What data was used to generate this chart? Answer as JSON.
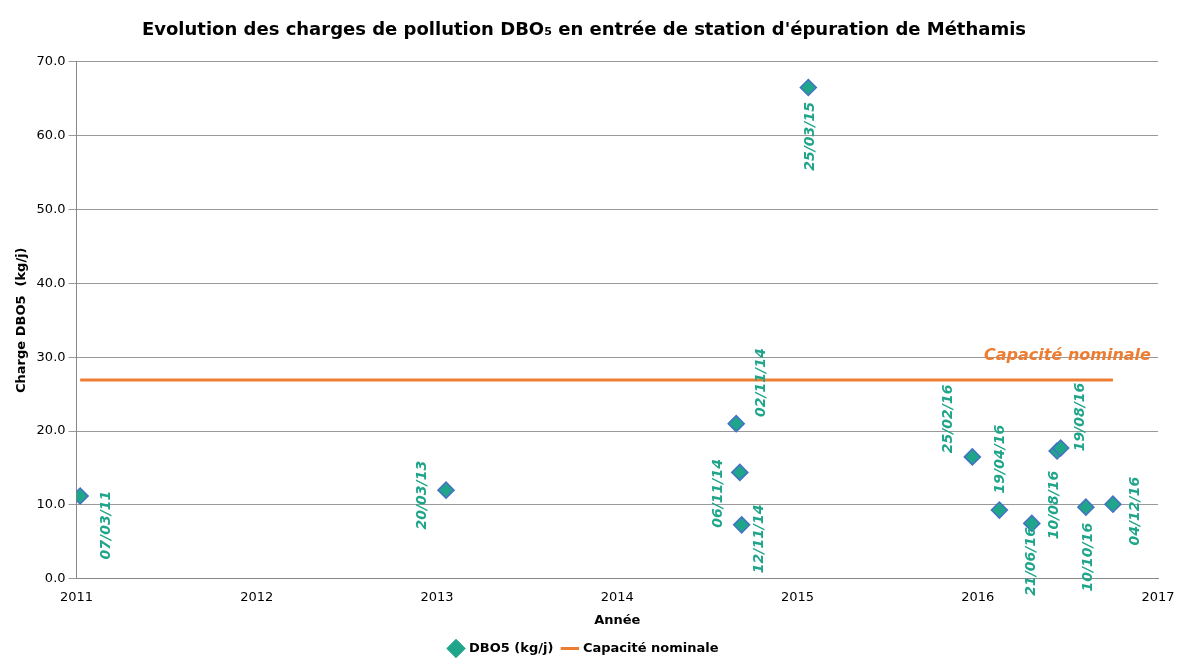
{
  "chart_data": {
    "type": "scatter",
    "title": "Evolution des charges de pollution DBO₅ en entrée de station d'épuration de Méthamis",
    "xlabel": "Année",
    "ylabel": "Charge DBO5  (kg/j)",
    "series": [
      {
        "name": "DBO5 (kg/j)",
        "color": "#1fa58a",
        "marker": "diamond",
        "x": [
          2011.02,
          2013.05,
          2014.66,
          2014.68,
          2014.69,
          2015.06,
          2015.97,
          2016.12,
          2016.3,
          2016.44,
          2016.46,
          2016.6,
          2016.75
        ],
        "values": [
          11.2,
          12.0,
          21.0,
          14.4,
          7.3,
          66.5,
          16.5,
          9.3,
          7.5,
          17.3,
          17.7,
          9.7,
          10.1
        ]
      },
      {
        "name": "Capacité nominale",
        "type": "line",
        "color": "#ed7d31",
        "marker": "none",
        "x": [
          2011.02,
          2016.75
        ],
        "values": [
          26.9,
          26.9
        ]
      }
    ],
    "annotations": [
      {
        "text": "07/03/11",
        "x": 2011.02,
        "y": 11.2
      },
      {
        "text": "20/03/13",
        "x": 2013.05,
        "y": 12.0
      },
      {
        "text": "06/11/14",
        "x": 2014.68,
        "y": 14.4
      },
      {
        "text": "02/11/14",
        "x": 2014.66,
        "y": 21.0
      },
      {
        "text": "12/11/14",
        "x": 2014.69,
        "y": 7.3
      },
      {
        "text": "25/03/15",
        "x": 2015.06,
        "y": 66.5
      },
      {
        "text": "25/02/16",
        "x": 2015.97,
        "y": 16.5
      },
      {
        "text": "19/04/16",
        "x": 2016.12,
        "y": 9.3
      },
      {
        "text": "21/06/16",
        "x": 2016.3,
        "y": 7.5
      },
      {
        "text": "10/08/16",
        "x": 2016.44,
        "y": 17.3
      },
      {
        "text": "19/08/16",
        "x": 2016.46,
        "y": 17.7
      },
      {
        "text": "10/10/16",
        "x": 2016.6,
        "y": 9.7
      },
      {
        "text": "04/12/16",
        "x": 2016.75,
        "y": 10.1
      }
    ],
    "xlim": [
      2011,
      2017
    ],
    "xticks": [
      2011,
      2012,
      2013,
      2014,
      2015,
      2016,
      2017
    ],
    "ylim": [
      0,
      70
    ],
    "yticks": [
      {
        "value": 0,
        "label": "0.0"
      },
      {
        "value": 10,
        "label": "10.0"
      },
      {
        "value": 20,
        "label": "20.0"
      },
      {
        "value": 30,
        "label": "30.0"
      },
      {
        "value": 40,
        "label": "40.0"
      },
      {
        "value": 50,
        "label": "50.0"
      },
      {
        "value": 60,
        "label": "60.0"
      },
      {
        "value": 70,
        "label": "70.0"
      }
    ],
    "grid": "y",
    "legend": "bottom"
  }
}
